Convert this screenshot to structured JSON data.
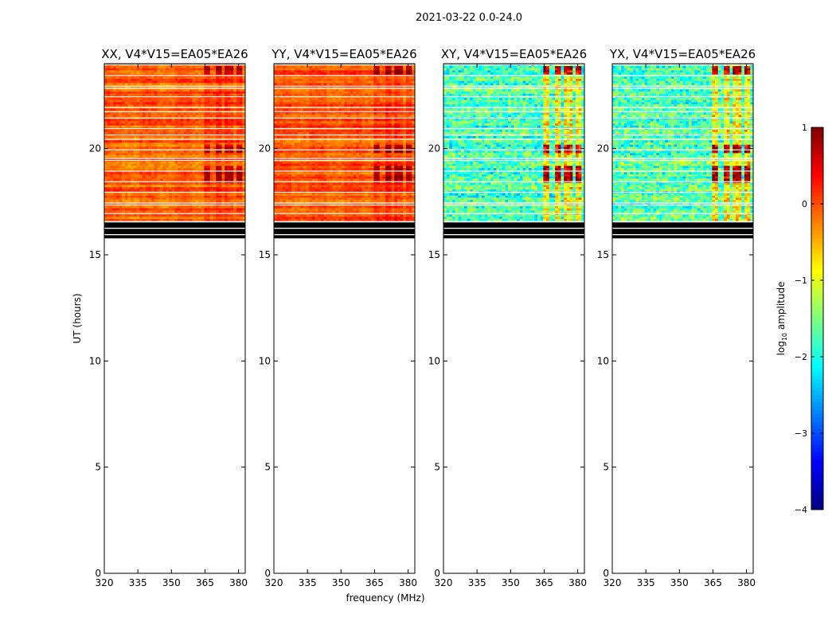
{
  "chart_data": {
    "type": "heatmap",
    "title": "2021-03-22 0.0-24.0",
    "xlabel": "frequency (MHz)",
    "ylabel": "UT (hours)",
    "xlim": [
      320,
      383
    ],
    "ylim": [
      0,
      24
    ],
    "x_ticks": [
      320,
      335,
      350,
      365,
      380
    ],
    "y_ticks": [
      0,
      5,
      10,
      15,
      20
    ],
    "data_time_range_hours": [
      16.6,
      24.0
    ],
    "flagged_time_rows_hours": [
      16.05,
      16.15,
      16.35,
      16.45,
      15.85
    ],
    "rfi_channels_MHz": [
      366.5,
      371.2,
      375.8,
      380.5
    ],
    "rfi_time_bands_hours": [
      18.6,
      19.0,
      20.0,
      23.7
    ],
    "panels": [
      {
        "name": "XX",
        "title": "XX, V4*V15=EA05*EA26",
        "base_log_amp": -0.15
      },
      {
        "name": "YY",
        "title": "YY, V4*V15=EA05*EA26",
        "base_log_amp": -0.1
      },
      {
        "name": "XY",
        "title": "XY, V4*V15=EA05*EA26",
        "base_log_amp": -1.75
      },
      {
        "name": "YX",
        "title": "YX, V4*V15=EA05*EA26",
        "base_log_amp": -1.75
      }
    ],
    "colorbar": {
      "label": "log",
      "label_sub": "10",
      "label_suffix": " amplitude",
      "min": -4,
      "max": 1,
      "ticks": [
        1,
        0,
        -1,
        -2,
        -3,
        -4
      ],
      "tick_labels": [
        "1",
        "0",
        "−1",
        "−2",
        "−3",
        "−4"
      ],
      "colormap": "jet"
    }
  }
}
